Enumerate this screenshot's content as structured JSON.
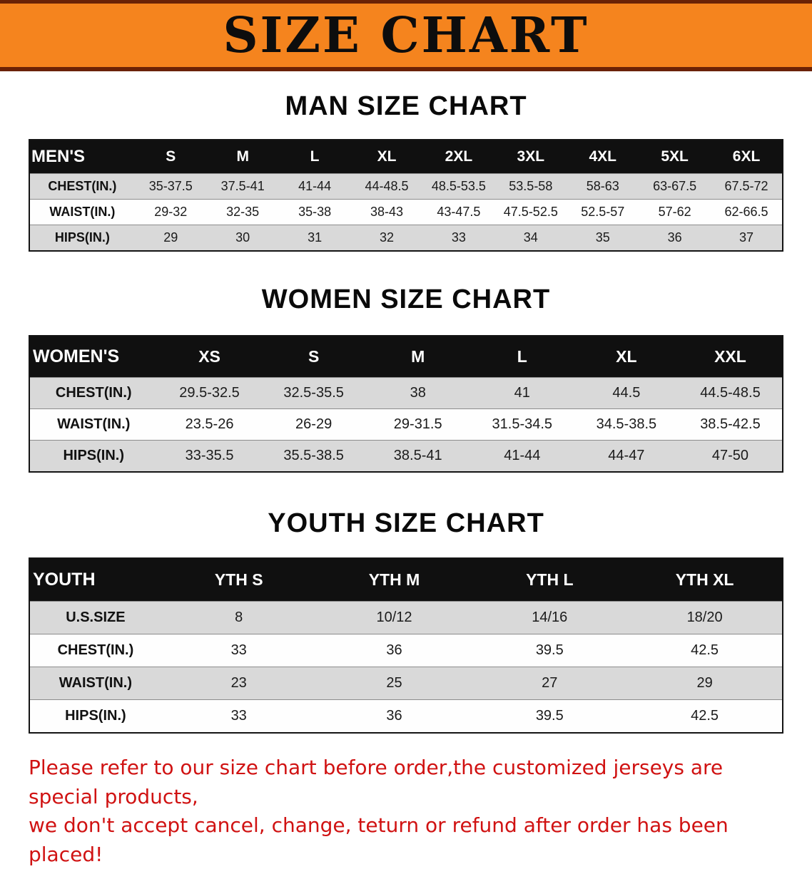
{
  "banner": {
    "title": "SIZE CHART",
    "bg_color": "#F5841E",
    "edge_color": "#6B2205"
  },
  "sections": [
    {
      "id": "men",
      "heading": "MAN SIZE CHART",
      "table": {
        "header": [
          "MEN'S",
          "S",
          "M",
          "L",
          "XL",
          "2XL",
          "3XL",
          "4XL",
          "5XL",
          "6XL"
        ],
        "rows": [
          {
            "label": "CHEST(IN.)",
            "values": [
              "35-37.5",
              "37.5-41",
              "41-44",
              "44-48.5",
              "48.5-53.5",
              "53.5-58",
              "58-63",
              "63-67.5",
              "67.5-72"
            ]
          },
          {
            "label": "WAIST(IN.)",
            "values": [
              "29-32",
              "32-35",
              "35-38",
              "38-43",
              "43-47.5",
              "47.5-52.5",
              "52.5-57",
              "57-62",
              "62-66.5"
            ]
          },
          {
            "label": "HIPS(IN.)",
            "values": [
              "29",
              "30",
              "31",
              "32",
              "33",
              "34",
              "35",
              "36",
              "37"
            ]
          }
        ]
      }
    },
    {
      "id": "women",
      "heading": "WOMEN SIZE CHART",
      "table": {
        "header": [
          "WOMEN'S",
          "XS",
          "S",
          "M",
          "L",
          "XL",
          "XXL"
        ],
        "rows": [
          {
            "label": "CHEST(IN.)",
            "values": [
              "29.5-32.5",
              "32.5-35.5",
              "38",
              "41",
              "44.5",
              "44.5-48.5"
            ]
          },
          {
            "label": "WAIST(IN.)",
            "values": [
              "23.5-26",
              "26-29",
              "29-31.5",
              "31.5-34.5",
              "34.5-38.5",
              "38.5-42.5"
            ]
          },
          {
            "label": "HIPS(IN.)",
            "values": [
              "33-35.5",
              "35.5-38.5",
              "38.5-41",
              "41-44",
              "44-47",
              "47-50"
            ]
          }
        ]
      }
    },
    {
      "id": "youth",
      "heading": "YOUTH SIZE CHART",
      "table": {
        "header": [
          "YOUTH",
          "YTH S",
          "YTH M",
          "YTH L",
          "YTH XL"
        ],
        "rows": [
          {
            "label": "U.S.SIZE",
            "values": [
              "8",
              "10/12",
              "14/16",
              "18/20"
            ]
          },
          {
            "label": "CHEST(IN.)",
            "values": [
              "33",
              "36",
              "39.5",
              "42.5"
            ]
          },
          {
            "label": "WAIST(IN.)",
            "values": [
              "23",
              "25",
              "27",
              "29"
            ]
          },
          {
            "label": "HIPS(IN.)",
            "values": [
              "33",
              "36",
              "39.5",
              "42.5"
            ]
          }
        ]
      }
    }
  ],
  "footer": {
    "line1": "Please refer to our size chart before order,the customized jerseys are special products,",
    "line2": "we don't accept cancel, change, teturn or refund after order has been placed!",
    "text_color": "#D01212"
  }
}
